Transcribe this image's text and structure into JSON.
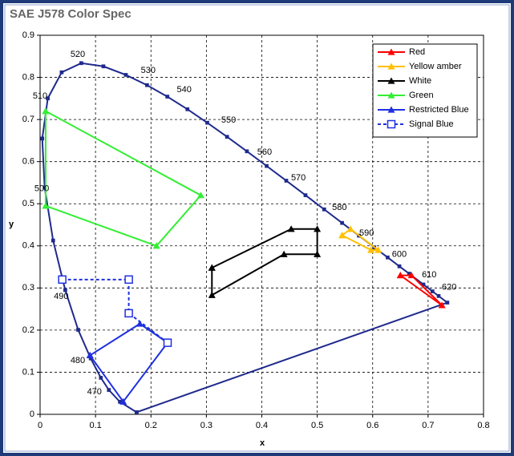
{
  "chart_data": {
    "type": "line",
    "title": "SAE J578 Color Spec",
    "x_label": "x",
    "y_label": "y",
    "xlim": [
      0,
      0.8
    ],
    "ylim": [
      0,
      0.9
    ],
    "xticks": [
      0,
      0.1,
      0.2,
      0.3,
      0.4,
      0.5,
      0.6,
      0.7,
      0.8
    ],
    "yticks": [
      0,
      0.1,
      0.2,
      0.3,
      0.4,
      0.5,
      0.6,
      0.7,
      0.8,
      0.9
    ],
    "grid": true,
    "legend": "upper right",
    "series": [
      {
        "color": "#1f2a8c",
        "marker": "square",
        "x": [
          0.1741,
          0.144,
          0.1241,
          0.1096,
          0.0913,
          0.0687,
          0.0454,
          0.0235,
          0.0082,
          0.0039,
          0.0139,
          0.0389,
          0.0743,
          0.1142,
          0.1547,
          0.1929,
          0.2296,
          0.2658,
          0.3016,
          0.3373,
          0.3731,
          0.4087,
          0.4441,
          0.4788,
          0.5125,
          0.5448,
          0.5752,
          0.6029,
          0.627,
          0.6482,
          0.6658,
          0.6915,
          0.7079,
          0.719,
          0.7347,
          0.1741
        ],
        "y": [
          0.005,
          0.0297,
          0.0578,
          0.0868,
          0.1327,
          0.2007,
          0.295,
          0.4127,
          0.5384,
          0.6548,
          0.7502,
          0.812,
          0.8338,
          0.8262,
          0.8059,
          0.7816,
          0.7543,
          0.7243,
          0.6923,
          0.6589,
          0.6245,
          0.5896,
          0.5547,
          0.5202,
          0.4866,
          0.4544,
          0.4242,
          0.3965,
          0.3725,
          0.3514,
          0.334,
          0.3083,
          0.292,
          0.2809,
          0.2653,
          0.005
        ]
      },
      {
        "name": "Red",
        "color": "#ff0000",
        "marker": "triangle",
        "x": [
          0.65,
          0.725,
          0.67,
          0.65
        ],
        "y": [
          0.33,
          0.259,
          0.33,
          0.33
        ]
      },
      {
        "name": "Yellow amber",
        "color": "#ffc000",
        "marker": "triangle",
        "x": [
          0.545,
          0.56,
          0.61,
          0.597,
          0.545
        ],
        "y": [
          0.425,
          0.44,
          0.39,
          0.39,
          0.425
        ]
      },
      {
        "name": "White",
        "color": "#000000",
        "marker": "triangle",
        "x": [
          0.31,
          0.453,
          0.5,
          0.5,
          0.44,
          0.31,
          0.31
        ],
        "y": [
          0.348,
          0.44,
          0.44,
          0.38,
          0.38,
          0.283,
          0.348
        ]
      },
      {
        "name": "Green",
        "color": "#33ee33",
        "marker": "triangle",
        "x": [
          0.01,
          0.29,
          0.21,
          0.01,
          0.01
        ],
        "y": [
          0.72,
          0.52,
          0.4,
          0.495,
          0.72
        ]
      },
      {
        "name": "Restricted Blue",
        "color": "#1f2fe0",
        "marker": "triangle",
        "x": [
          0.09,
          0.18,
          0.23,
          0.15,
          0.09
        ],
        "y": [
          0.14,
          0.215,
          0.17,
          0.03,
          0.14
        ]
      },
      {
        "name": "Signal Blue",
        "color": "#1f2fe0",
        "marker": "square",
        "dash": true,
        "x": [
          0.04,
          0.16,
          0.16,
          0.23
        ],
        "y": [
          0.32,
          0.32,
          0.24,
          0.17
        ]
      }
    ],
    "annotations": [
      {
        "text": "470",
        "x": 0.098,
        "y": 0.053
      },
      {
        "text": "480",
        "x": 0.068,
        "y": 0.127
      },
      {
        "text": "490",
        "x": 0.038,
        "y": 0.28
      },
      {
        "text": "500",
        "x": 0.003,
        "y": 0.535
      },
      {
        "text": "510",
        "x": 0.0,
        "y": 0.755
      },
      {
        "text": "520",
        "x": 0.068,
        "y": 0.854
      },
      {
        "text": "530",
        "x": 0.195,
        "y": 0.816
      },
      {
        "text": "540",
        "x": 0.26,
        "y": 0.77
      },
      {
        "text": "550",
        "x": 0.34,
        "y": 0.698
      },
      {
        "text": "560",
        "x": 0.405,
        "y": 0.622
      },
      {
        "text": "570",
        "x": 0.466,
        "y": 0.561
      },
      {
        "text": "580",
        "x": 0.54,
        "y": 0.491
      },
      {
        "text": "590",
        "x": 0.589,
        "y": 0.43
      },
      {
        "text": "600",
        "x": 0.648,
        "y": 0.379
      },
      {
        "text": "610",
        "x": 0.702,
        "y": 0.331
      },
      {
        "text": "620",
        "x": 0.738,
        "y": 0.301
      }
    ]
  }
}
